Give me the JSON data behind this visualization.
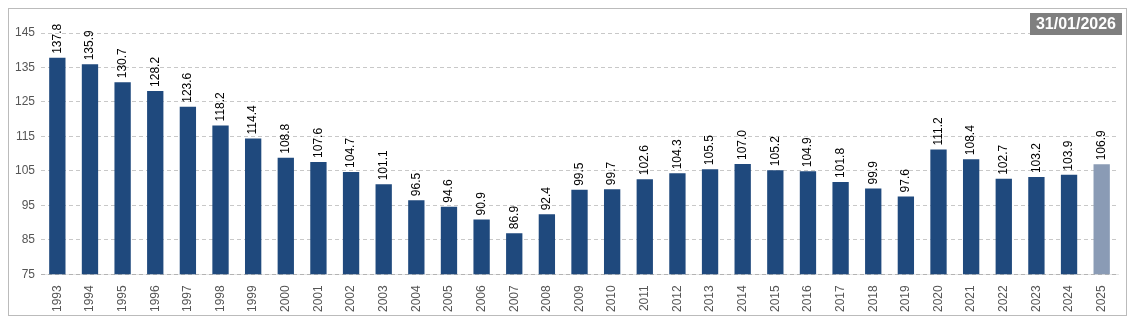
{
  "chart_data": {
    "type": "bar",
    "categories": [
      "1993",
      "1994",
      "1995",
      "1996",
      "1997",
      "1998",
      "1999",
      "2000",
      "2001",
      "2002",
      "2003",
      "2004",
      "2005",
      "2006",
      "2007",
      "2008",
      "2009",
      "2010",
      "2011",
      "2012",
      "2013",
      "2014",
      "2015",
      "2016",
      "2017",
      "2018",
      "2019",
      "2020",
      "2021",
      "2022",
      "2023",
      "2024",
      "2025"
    ],
    "values": [
      137.8,
      135.9,
      130.7,
      128.2,
      123.6,
      118.2,
      114.4,
      108.8,
      107.6,
      104.7,
      101.1,
      96.5,
      94.6,
      90.9,
      86.9,
      92.4,
      99.5,
      99.7,
      102.6,
      104.3,
      105.5,
      107.0,
      105.2,
      104.9,
      101.8,
      99.9,
      97.6,
      111.2,
      108.4,
      102.7,
      103.2,
      103.9,
      106.9
    ],
    "colors": [
      "#1f497d",
      "#1f497d",
      "#1f497d",
      "#1f497d",
      "#1f497d",
      "#1f497d",
      "#1f497d",
      "#1f497d",
      "#1f497d",
      "#1f497d",
      "#1f497d",
      "#1f497d",
      "#1f497d",
      "#1f497d",
      "#1f497d",
      "#1f497d",
      "#1f497d",
      "#1f497d",
      "#1f497d",
      "#1f497d",
      "#1f497d",
      "#1f497d",
      "#1f497d",
      "#1f497d",
      "#1f497d",
      "#1f497d",
      "#1f497d",
      "#1f497d",
      "#1f497d",
      "#1f497d",
      "#1f497d",
      "#1f497d",
      "#8a9bb5"
    ],
    "ylim": [
      75,
      145
    ],
    "yticks": [
      75,
      85,
      95,
      105,
      115,
      125,
      135,
      145
    ],
    "value_labels": [
      "137.8",
      "135.9",
      "130.7",
      "128.2",
      "123.6",
      "118.2",
      "114.4",
      "108.8",
      "107.6",
      "104.7",
      "101.1",
      "96.5",
      "94.6",
      "90.9",
      "86.9",
      "92.4",
      "99.5",
      "99.7",
      "102.6",
      "104.3",
      "105.5",
      "107.0",
      "105.2",
      "104.9",
      "101.8",
      "99.9",
      "97.6",
      "111.2",
      "108.4",
      "102.7",
      "103.2",
      "103.9",
      "106.9"
    ],
    "grid": "y",
    "annotations": [
      "31/01/2026"
    ]
  }
}
